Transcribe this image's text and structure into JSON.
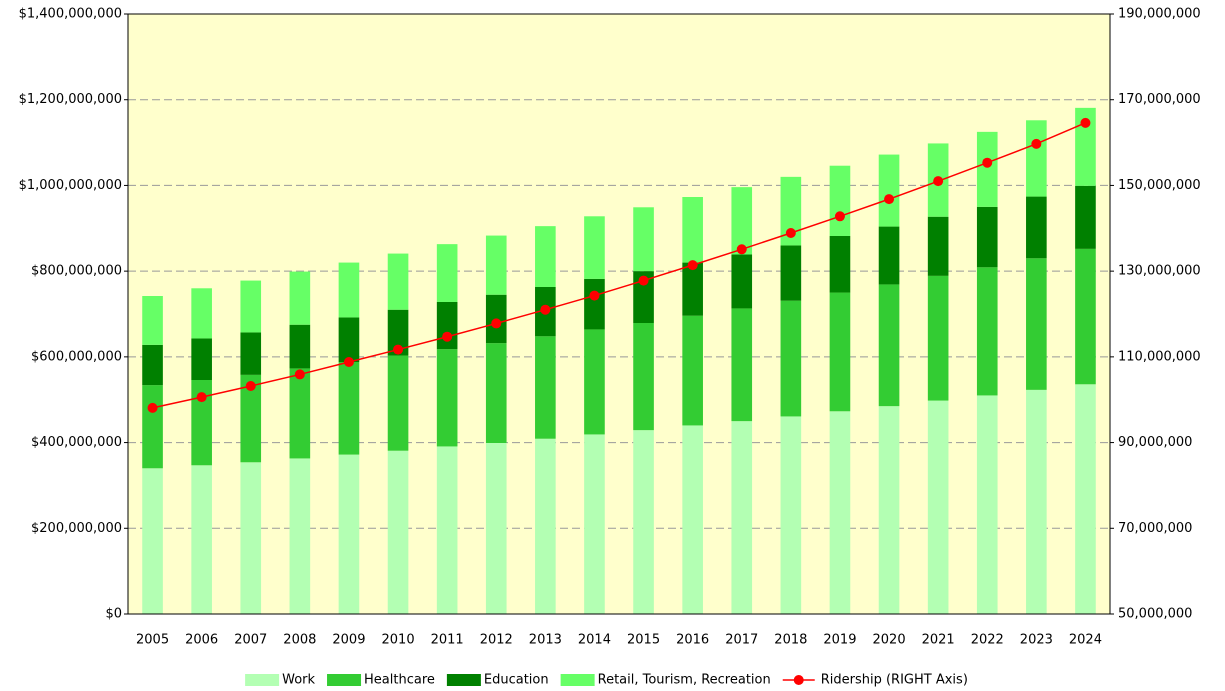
{
  "chart_data": {
    "type": "bar",
    "stacked": true,
    "categories": [
      "2005",
      "2006",
      "2007",
      "2008",
      "2009",
      "2010",
      "2011",
      "2012",
      "2013",
      "2014",
      "2015",
      "2016",
      "2017",
      "2018",
      "2019",
      "2020",
      "2021",
      "2022",
      "2023",
      "2024"
    ],
    "series": [
      {
        "name": "Work",
        "color": "#b3ffb3",
        "values": [
          340000000,
          347000000,
          354000000,
          363000000,
          372000000,
          381000000,
          391000000,
          399000000,
          409000000,
          419000000,
          429000000,
          440000000,
          450000000,
          461000000,
          473000000,
          485000000,
          498000000,
          510000000,
          523000000,
          536000000
        ]
      },
      {
        "name": "Healthcare",
        "color": "#33cc33",
        "values": [
          194000000,
          199000000,
          204000000,
          210000000,
          216000000,
          222000000,
          227000000,
          233000000,
          239000000,
          245000000,
          250000000,
          256000000,
          263000000,
          270000000,
          277000000,
          284000000,
          291000000,
          299000000,
          307000000,
          316000000
        ]
      },
      {
        "name": "Education",
        "color": "#008000",
        "values": [
          94000000,
          97000000,
          99000000,
          102000000,
          104000000,
          107000000,
          110000000,
          113000000,
          115000000,
          118000000,
          121000000,
          124000000,
          126000000,
          129000000,
          132000000,
          135000000,
          138000000,
          141000000,
          144000000,
          147000000
        ]
      },
      {
        "name": "Retail, Tourism, Recreation",
        "color": "#66ff66",
        "values": [
          114000000,
          117000000,
          121000000,
          124000000,
          128000000,
          131000000,
          135000000,
          138000000,
          142000000,
          146000000,
          149000000,
          153000000,
          157000000,
          160000000,
          164000000,
          168000000,
          171000000,
          175000000,
          178000000,
          182000000
        ]
      },
      {
        "name": "Ridership (RIGHT Axis)",
        "color": "#ff0000",
        "type": "line",
        "axis": "y2",
        "values": [
          98100000,
          100600000,
          103200000,
          105900000,
          108800000,
          111700000,
          114700000,
          117800000,
          121000000,
          124300000,
          127800000,
          131400000,
          135100000,
          138900000,
          142800000,
          146800000,
          151000000,
          155300000,
          159700000,
          164600000
        ]
      }
    ],
    "ylim": [
      0,
      1400000000
    ],
    "yticks": [
      {
        "value": 0,
        "label": "$0"
      },
      {
        "value": 200000000,
        "label": "$200,000,000"
      },
      {
        "value": 400000000,
        "label": "$400,000,000"
      },
      {
        "value": 600000000,
        "label": "$600,000,000"
      },
      {
        "value": 800000000,
        "label": "$800,000,000"
      },
      {
        "value": 1000000000,
        "label": "$1,000,000,000"
      },
      {
        "value": 1200000000,
        "label": "$1,200,000,000"
      },
      {
        "value": 1400000000,
        "label": "$1,400,000,000"
      }
    ],
    "y2lim": [
      50000000,
      190000000
    ],
    "y2ticks": [
      {
        "value": 50000000,
        "label": "50,000,000"
      },
      {
        "value": 70000000,
        "label": "70,000,000"
      },
      {
        "value": 90000000,
        "label": "90,000,000"
      },
      {
        "value": 110000000,
        "label": "110,000,000"
      },
      {
        "value": 130000000,
        "label": "130,000,000"
      },
      {
        "value": 150000000,
        "label": "150,000,000"
      },
      {
        "value": 170000000,
        "label": "170,000,000"
      },
      {
        "value": 190000000,
        "label": "190,000,000"
      }
    ],
    "grid": true,
    "legend": "bottom"
  }
}
